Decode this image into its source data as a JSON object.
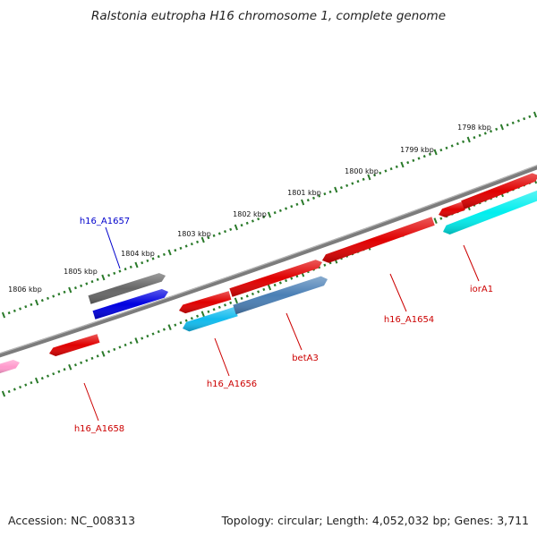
{
  "title": "Ralstonia eutropha H16 chromosome 1, complete genome",
  "footer": {
    "accession": "Accession: NC_008313",
    "summary": "Topology: circular; Length: 4,052,032 bp; Genes: 3,711"
  },
  "colors": {
    "backbone": "#808080",
    "tick": "#2a7a2a",
    "label_red": "#cc0000",
    "label_blue": "#0000cc"
  },
  "ticks": [
    "1798 kbp",
    "1799 kbp",
    "1800 kbp",
    "1801 kbp",
    "1802 kbp",
    "1803 kbp",
    "1804 kbp",
    "1805 kbp",
    "1806 kbp"
  ],
  "genes": [
    {
      "id": "g1",
      "label": "h16_A1657",
      "color": "#0000e0",
      "label_color": "#0000cc"
    },
    {
      "id": "g2",
      "label": "",
      "color": "#666666",
      "label_color": ""
    },
    {
      "id": "g3",
      "label": "h16_A1658",
      "color": "#e00000",
      "label_color": "#cc0000"
    },
    {
      "id": "g4",
      "label": "",
      "color": "#ff99cc",
      "label_color": ""
    },
    {
      "id": "g5",
      "label": "h16_A1656",
      "color": "#11bbee",
      "label_color": "#cc0000"
    },
    {
      "id": "g6",
      "label": "",
      "color": "#e00000",
      "label_color": ""
    },
    {
      "id": "g7",
      "label": "betA3",
      "color": "#4a7fb5",
      "label_color": "#cc0000"
    },
    {
      "id": "g8",
      "label": "",
      "color": "#e00000",
      "label_color": ""
    },
    {
      "id": "g9",
      "label": "h16_A1654",
      "color": "#e00000",
      "label_color": "#cc0000"
    },
    {
      "id": "g10",
      "label": "iorA1",
      "color": "#00eeee",
      "label_color": "#cc0000"
    },
    {
      "id": "g11",
      "label": "",
      "color": "#e00000",
      "label_color": ""
    },
    {
      "id": "g12",
      "label": "",
      "color": "#e00000",
      "label_color": ""
    }
  ]
}
